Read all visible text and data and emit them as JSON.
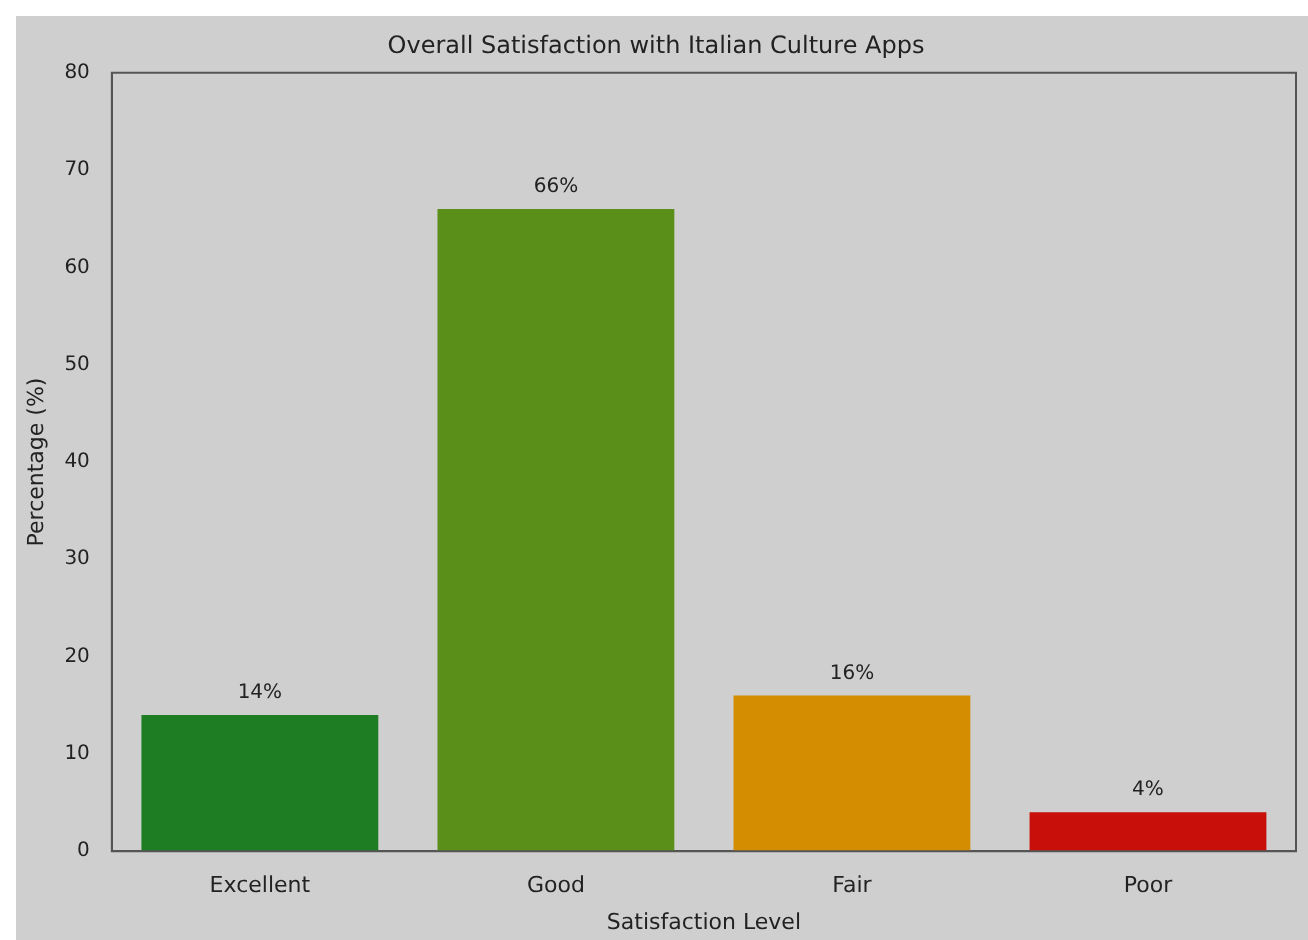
{
  "chart_data": {
    "type": "bar",
    "title": "Overall Satisfaction with Italian Culture Apps",
    "xlabel": "Satisfaction Level",
    "ylabel": "Percentage (%)",
    "categories": [
      "Excellent",
      "Good",
      "Fair",
      "Poor"
    ],
    "values": [
      14,
      66,
      16,
      4
    ],
    "colors": [
      "#1e7d22",
      "#5a8f1a",
      "#d48c00",
      "#c80f0a"
    ],
    "value_labels": [
      "14%",
      "66%",
      "16%",
      "4%"
    ],
    "ylim": [
      0,
      80
    ],
    "yticks": [
      0,
      10,
      20,
      30,
      40,
      50,
      60,
      70,
      80
    ],
    "grid": false,
    "legend": false
  }
}
